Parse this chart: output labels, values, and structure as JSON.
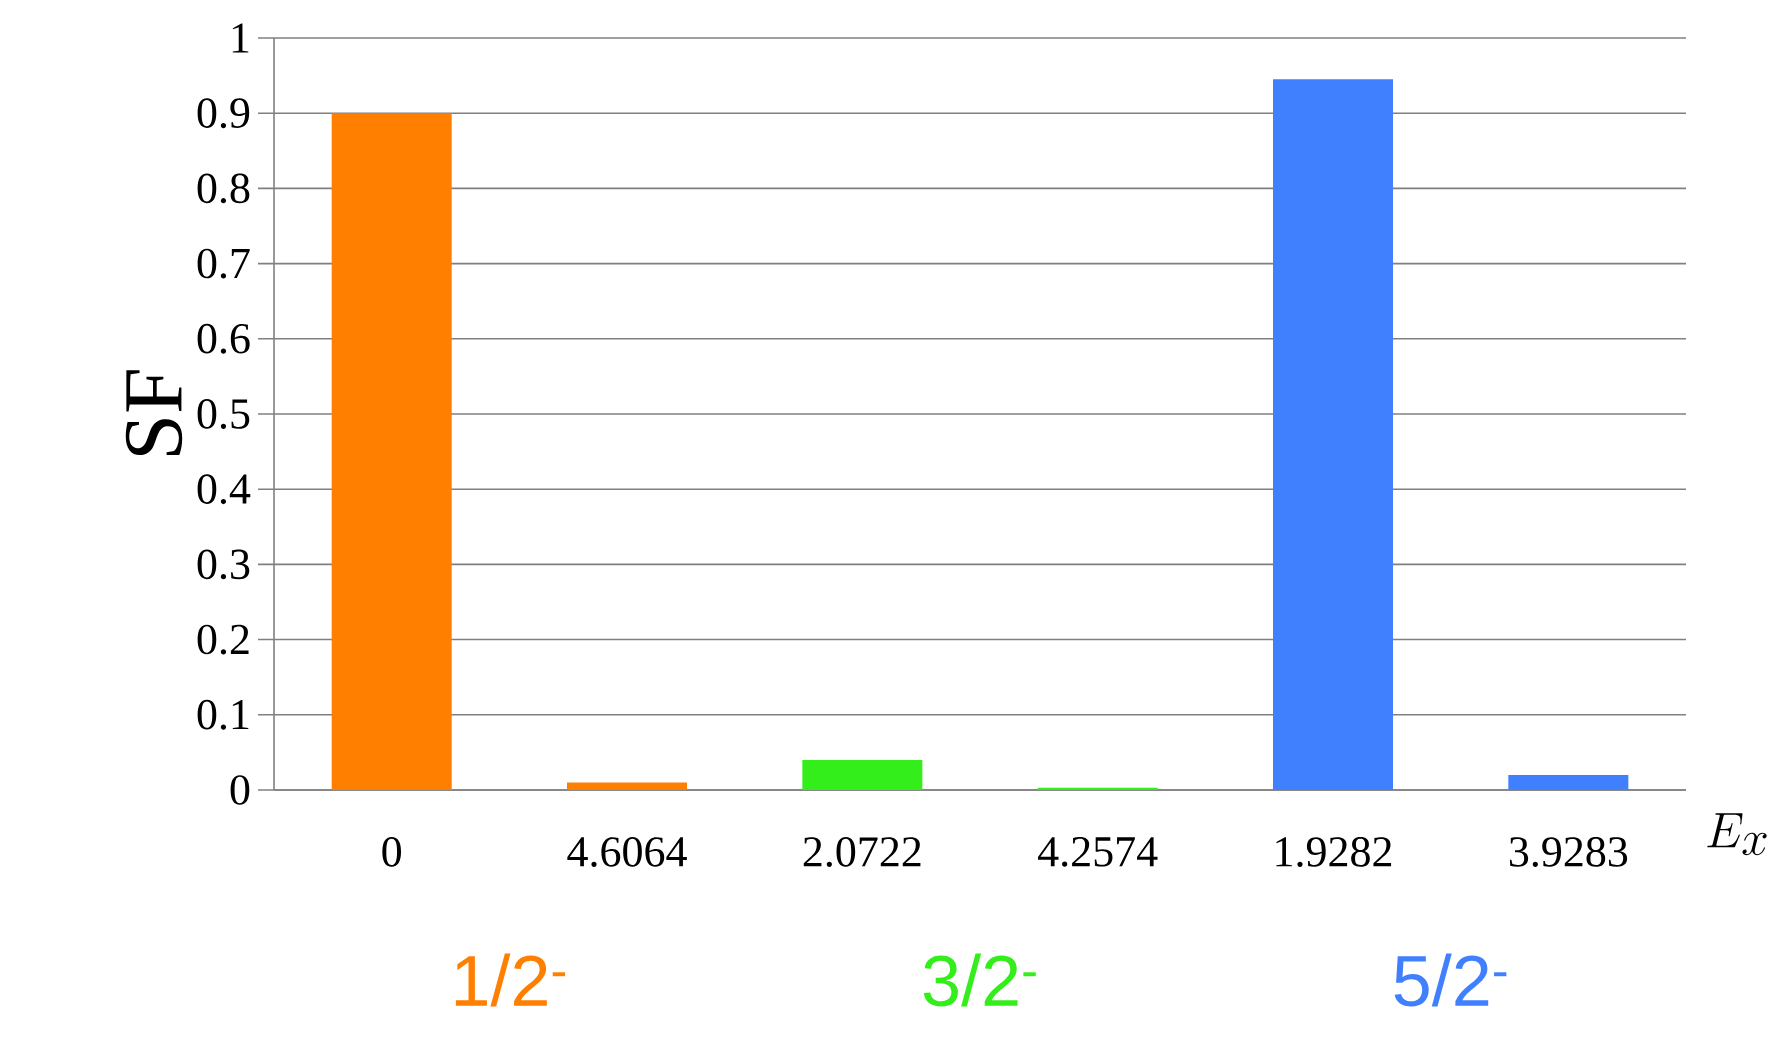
{
  "chart_data": {
    "type": "bar",
    "ylabel": "SF",
    "xlabel": "E_x",
    "categories": [
      "0",
      "4.6064",
      "2.0722",
      "4.2574",
      "1.9282",
      "3.9283"
    ],
    "series": [
      {
        "name": "1/2$^{-}$",
        "color": "#ff7f00",
        "values": [
          0.9,
          0.01,
          null,
          null,
          null,
          null
        ]
      },
      {
        "name": "3/2$^{-}$",
        "color": "#33ee1a",
        "values": [
          null,
          null,
          0.04,
          0.003,
          null,
          null
        ]
      },
      {
        "name": "5/2$^{-}$",
        "color": "#4080ff",
        "values": [
          null,
          null,
          null,
          null,
          0.945,
          0.02
        ]
      }
    ],
    "ylim": [
      0,
      1
    ],
    "yticks": [
      0,
      0.1,
      0.2,
      0.3,
      0.4,
      0.5,
      0.6,
      0.7,
      0.8,
      0.9,
      1
    ],
    "grid": "y",
    "legend": false
  }
}
